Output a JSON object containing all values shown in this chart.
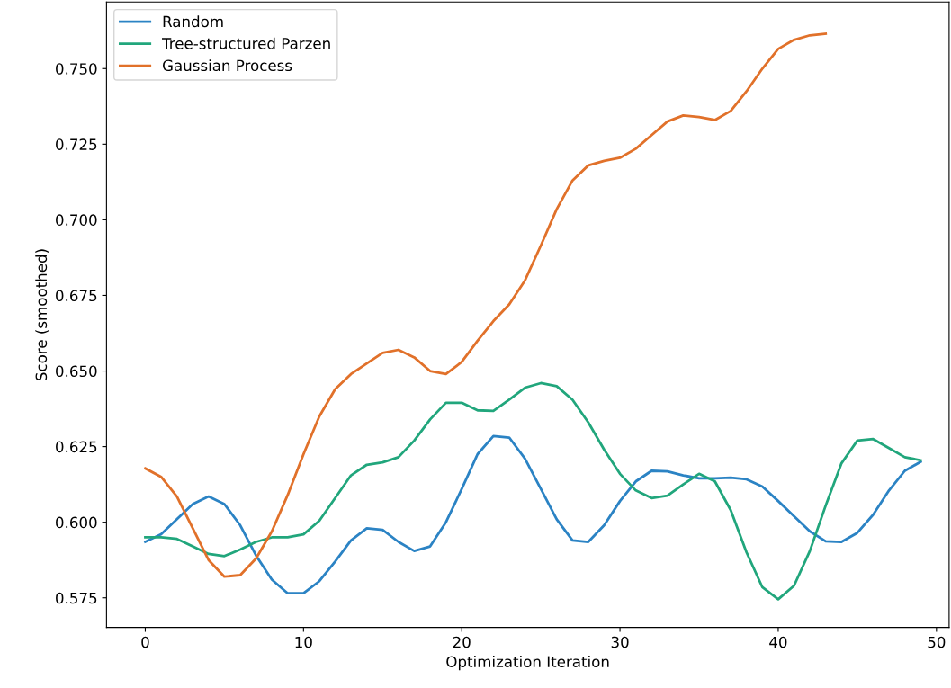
{
  "chart_data": {
    "type": "line",
    "xlabel": "Optimization Iteration",
    "ylabel": "Score (smoothed)",
    "legend": "top left",
    "grid": false,
    "xlim": [
      -2.45,
      50.8
    ],
    "xticks": [
      0,
      10,
      20,
      30,
      40,
      50
    ],
    "ylim": [
      0.5652,
      0.772
    ],
    "yticks": [
      {
        "value": 0.575,
        "label": "0.575"
      },
      {
        "value": 0.6,
        "label": "0.600"
      },
      {
        "value": 0.625,
        "label": "0.625"
      },
      {
        "value": 0.65,
        "label": "0.650"
      },
      {
        "value": 0.675,
        "label": "0.675"
      },
      {
        "value": 0.7,
        "label": "0.700"
      },
      {
        "value": 0.725,
        "label": "0.725"
      },
      {
        "value": 0.75,
        "label": "0.750"
      }
    ],
    "x": [
      0,
      1,
      2,
      3,
      4,
      5,
      6,
      7,
      8,
      9,
      10,
      11,
      12,
      13,
      14,
      15,
      16,
      17,
      18,
      19,
      20,
      21,
      22,
      23,
      24,
      25,
      26,
      27,
      28,
      29,
      30,
      31,
      32,
      33,
      34,
      35,
      36,
      37,
      38,
      39,
      40,
      41,
      42,
      43,
      44,
      45,
      46,
      47,
      48,
      49
    ],
    "series": [
      {
        "name": "Random",
        "color": "#2b83c4",
        "values": [
          0.5935,
          0.596,
          0.601,
          0.606,
          0.6085,
          0.606,
          0.599,
          0.589,
          0.581,
          0.5765,
          0.5765,
          0.5805,
          0.587,
          0.594,
          0.598,
          0.5975,
          0.5935,
          0.5905,
          0.592,
          0.6,
          0.611,
          0.6225,
          0.6285,
          0.628,
          0.621,
          0.611,
          0.601,
          0.594,
          0.5935,
          0.599,
          0.607,
          0.6135,
          0.617,
          0.6168,
          0.6155,
          0.6145,
          0.6145,
          0.6147,
          0.6142,
          0.6118,
          0.607,
          0.602,
          0.597,
          0.5937,
          0.5935,
          0.5965,
          0.6025,
          0.6105,
          0.617,
          0.62
        ]
      },
      {
        "name": "Tree-structured Parzen",
        "color": "#21a67c",
        "values": [
          0.595,
          0.595,
          0.5945,
          0.592,
          0.5895,
          0.5888,
          0.591,
          0.5935,
          0.595,
          0.595,
          0.596,
          0.6005,
          0.608,
          0.6155,
          0.619,
          0.6198,
          0.6215,
          0.627,
          0.634,
          0.6395,
          0.6395,
          0.637,
          0.6368,
          0.6405,
          0.6445,
          0.646,
          0.645,
          0.6405,
          0.633,
          0.624,
          0.616,
          0.6105,
          0.608,
          0.6088,
          0.6125,
          0.616,
          0.6135,
          0.604,
          0.59,
          0.5785,
          0.5745,
          0.579,
          0.5905,
          0.6055,
          0.6195,
          0.627,
          0.6275,
          0.6245,
          0.6215,
          0.6205
        ]
      },
      {
        "name": "Gaussian Process",
        "color": "#e1712a",
        "x": [
          0,
          1,
          2,
          3,
          4,
          5,
          6,
          7,
          8,
          9,
          10,
          11,
          12,
          13,
          14,
          15,
          16,
          17,
          18,
          19,
          20,
          21,
          22,
          23,
          24,
          25,
          26,
          27,
          28,
          29,
          30,
          31,
          32,
          33,
          34,
          35,
          36,
          37,
          38,
          39,
          40,
          41,
          42,
          43
        ],
        "values": [
          0.6178,
          0.615,
          0.6085,
          0.598,
          0.5875,
          0.582,
          0.5825,
          0.588,
          0.597,
          0.609,
          0.6225,
          0.635,
          0.644,
          0.649,
          0.6525,
          0.656,
          0.657,
          0.6545,
          0.65,
          0.649,
          0.653,
          0.66,
          0.6665,
          0.672,
          0.68,
          0.6915,
          0.7035,
          0.713,
          0.718,
          0.7195,
          0.7205,
          0.7235,
          0.728,
          0.7325,
          0.7345,
          0.734,
          0.733,
          0.736,
          0.7425,
          0.75,
          0.7565,
          0.7595,
          0.761,
          0.7615
        ]
      }
    ]
  }
}
